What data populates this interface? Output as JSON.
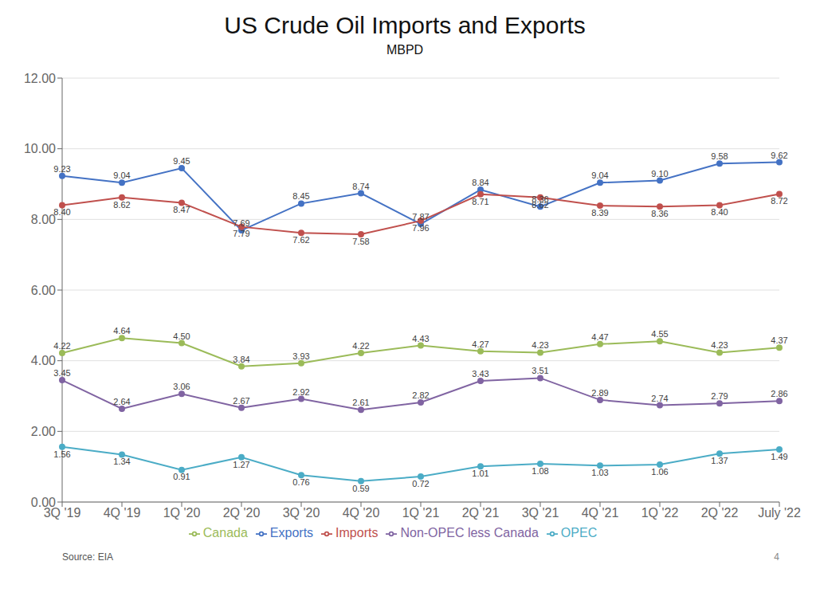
{
  "chart_data": {
    "type": "line",
    "title": "US Crude Oil Imports and Exports",
    "subtitle": "MBPD",
    "annotations": [
      "Source: EIA",
      "4"
    ],
    "categories": [
      "3Q '19",
      "4Q '19",
      "1Q '20",
      "2Q '20",
      "3Q '20",
      "4Q '20",
      "1Q '21",
      "2Q '21",
      "3Q '21",
      "4Q '21",
      "1Q '22",
      "2Q '22",
      "July '22"
    ],
    "series": [
      {
        "name": "Exports",
        "color": "#4472C4",
        "values": [
          9.23,
          9.04,
          9.45,
          7.69,
          8.45,
          8.74,
          7.87,
          8.84,
          8.36,
          9.04,
          9.1,
          9.58,
          9.62
        ],
        "value_labels": [
          "9.23",
          "9.04",
          "9.45",
          "7.69",
          "8.45",
          "8.74",
          "7.87",
          "8.84",
          "8.36",
          "9.04",
          "9.10",
          "9.58",
          "9.62"
        ]
      },
      {
        "name": "Imports",
        "color": "#C0504D",
        "values": [
          8.4,
          8.62,
          8.47,
          7.79,
          7.62,
          7.58,
          7.96,
          8.71,
          8.62,
          8.39,
          8.36,
          8.4,
          8.72
        ],
        "value_labels": [
          "8.40",
          "8.62",
          "8.47",
          "7.79",
          "7.62",
          "7.58",
          "7.96",
          "8.71",
          "8.62",
          "8.39",
          "8.36",
          "8.40",
          "8.72"
        ]
      },
      {
        "name": "Canada",
        "color": "#9BBB59",
        "values": [
          4.22,
          4.64,
          4.5,
          3.84,
          3.93,
          4.22,
          4.43,
          4.27,
          4.23,
          4.47,
          4.55,
          4.23,
          4.37
        ],
        "value_labels": [
          "4.22",
          "4.64",
          "4.50",
          "3.84",
          "3.93",
          "4.22",
          "4.43",
          "4.27",
          "4.23",
          "4.47",
          "4.55",
          "4.23",
          "4.37"
        ]
      },
      {
        "name": "Non-OPEC less Canada",
        "color": "#8064A2",
        "values": [
          3.45,
          2.64,
          3.06,
          2.67,
          2.92,
          2.61,
          2.82,
          3.43,
          3.51,
          2.89,
          2.74,
          2.79,
          2.86
        ],
        "value_labels": [
          "3.45",
          "2.64",
          "3.06",
          "2.67",
          "2.92",
          "2.61",
          "2.82",
          "3.43",
          "3.51",
          "2.89",
          "2.74",
          "2.79",
          "2.86"
        ]
      },
      {
        "name": "OPEC",
        "color": "#4BACC6",
        "values": [
          1.56,
          1.34,
          0.91,
          1.27,
          0.76,
          0.59,
          0.72,
          1.01,
          1.08,
          1.03,
          1.06,
          1.37,
          1.49
        ],
        "value_labels": [
          "1.56",
          "1.34",
          "0.91",
          "1.27",
          "0.76",
          "0.59",
          "0.72",
          "1.01",
          "1.08",
          "1.03",
          "1.06",
          "1.37",
          "1.49"
        ]
      }
    ],
    "ylim": [
      0.0,
      12.0
    ],
    "yticks": [
      {
        "value": 0.0,
        "label": "0.00"
      },
      {
        "value": 2.0,
        "label": "2.00"
      },
      {
        "value": 4.0,
        "label": "4.00"
      },
      {
        "value": 6.0,
        "label": "6.00"
      },
      {
        "value": 8.0,
        "label": "8.00"
      },
      {
        "value": 10.0,
        "label": "10.00"
      },
      {
        "value": 12.0,
        "label": "12.00"
      }
    ],
    "grid": true,
    "legend": "bottom",
    "data_labels": true,
    "marker": "circle"
  }
}
